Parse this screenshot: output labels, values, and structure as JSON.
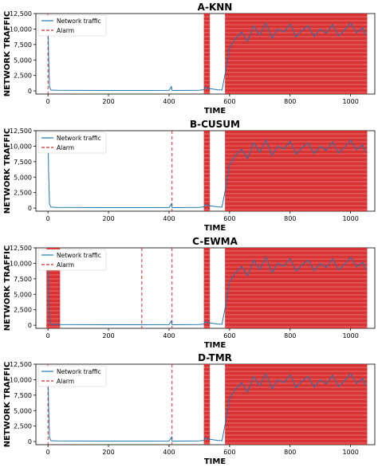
{
  "figure": {
    "xlabel": "TIME",
    "ylabel": "NETWORK TRAFFIC"
  },
  "chart_data": [
    {
      "type": "line",
      "title": "A-KNN",
      "xlabel": "TIME",
      "ylabel": "NETWORK TRAFFIC",
      "xlim": [
        -40,
        1080
      ],
      "ylim": [
        -500,
        12500
      ],
      "xticks": [
        0,
        200,
        400,
        600,
        800,
        1000
      ],
      "yticks": [
        0,
        2500,
        5000,
        7500,
        10000,
        12500
      ],
      "ytick_labels": [
        "0",
        "2,500",
        "5,000",
        "7,500",
        "10,000",
        "12,500"
      ],
      "legend": {
        "position": "top-left",
        "entries": [
          "Network traffic",
          "Alarm"
        ]
      },
      "series": [
        {
          "name": "Network traffic",
          "color": "#1f77b4",
          "x": [
            0,
            2,
            5,
            10,
            30,
            100,
            200,
            300,
            400,
            408,
            410,
            412,
            420,
            500,
            515,
            520,
            530,
            545,
            560,
            575,
            590,
            600,
            620,
            640,
            660,
            680,
            700,
            720,
            740,
            760,
            780,
            800,
            820,
            840,
            860,
            880,
            900,
            920,
            940,
            960,
            980,
            1000,
            1020,
            1040,
            1050
          ],
          "y": [
            12200,
            6000,
            600,
            150,
            100,
            90,
            80,
            80,
            90,
            700,
            90,
            80,
            80,
            120,
            200,
            600,
            400,
            300,
            200,
            150,
            4000,
            7000,
            8500,
            9500,
            8000,
            10500,
            9000,
            11000,
            8500,
            10000,
            9500,
            10800,
            8700,
            9800,
            10500,
            8800,
            10000,
            9300,
            10700,
            8900,
            9800,
            11000,
            9400,
            10200,
            9000
          ]
        },
        {
          "name": "Alarm",
          "color": "#d62728",
          "type": "vline",
          "single": [
            0
          ],
          "bands": [
            [
              515,
              535
            ],
            [
              585,
              1055
            ]
          ]
        }
      ]
    },
    {
      "type": "line",
      "title": "B-CUSUM",
      "xlabel": "TIME",
      "ylabel": "NETWORK TRAFFIC",
      "xlim": [
        -40,
        1080
      ],
      "ylim": [
        -500,
        12500
      ],
      "xticks": [
        0,
        200,
        400,
        600,
        800,
        1000
      ],
      "yticks": [
        0,
        2500,
        5000,
        7500,
        10000,
        12500
      ],
      "ytick_labels": [
        "0",
        "2,500",
        "5,000",
        "7,500",
        "10,000",
        "12,500"
      ],
      "legend": {
        "position": "top-left",
        "entries": [
          "Network traffic",
          "Alarm"
        ]
      },
      "series": [
        {
          "name": "Network traffic",
          "color": "#1f77b4",
          "x": [
            0,
            2,
            5,
            10,
            30,
            100,
            200,
            300,
            400,
            408,
            410,
            412,
            420,
            500,
            515,
            520,
            530,
            545,
            560,
            575,
            590,
            600,
            620,
            640,
            660,
            680,
            700,
            720,
            740,
            760,
            780,
            800,
            820,
            840,
            860,
            880,
            900,
            920,
            940,
            960,
            980,
            1000,
            1020,
            1040,
            1050
          ],
          "y": [
            12200,
            6000,
            600,
            150,
            100,
            90,
            80,
            80,
            90,
            700,
            90,
            80,
            80,
            120,
            200,
            600,
            400,
            300,
            200,
            150,
            4000,
            7000,
            8500,
            9500,
            8000,
            10500,
            9000,
            11000,
            8500,
            10000,
            9500,
            10800,
            8700,
            9800,
            10500,
            8800,
            10000,
            9300,
            10700,
            8900,
            9800,
            11000,
            9400,
            10200,
            9000
          ]
        },
        {
          "name": "Alarm",
          "color": "#d62728",
          "type": "vline",
          "single": [
            410
          ],
          "bands": [
            [
              515,
              535
            ],
            [
              585,
              1055
            ]
          ]
        }
      ]
    },
    {
      "type": "line",
      "title": "C-EWMA",
      "xlabel": "TIME",
      "ylabel": "NETWORK TRAFFIC",
      "xlim": [
        -40,
        1080
      ],
      "ylim": [
        -500,
        12500
      ],
      "xticks": [
        0,
        200,
        400,
        600,
        800,
        1000
      ],
      "yticks": [
        0,
        2500,
        5000,
        7500,
        10000,
        12500
      ],
      "ytick_labels": [
        "0",
        "2,500",
        "5,000",
        "7,500",
        "10,000",
        "12,500"
      ],
      "legend": {
        "position": "top-left",
        "entries": [
          "Network traffic",
          "Alarm"
        ]
      },
      "series": [
        {
          "name": "Network traffic",
          "color": "#1f77b4",
          "x": [
            0,
            2,
            5,
            10,
            30,
            100,
            200,
            300,
            400,
            408,
            410,
            412,
            420,
            500,
            515,
            520,
            530,
            545,
            560,
            575,
            590,
            600,
            620,
            640,
            660,
            680,
            700,
            720,
            740,
            760,
            780,
            800,
            820,
            840,
            860,
            880,
            900,
            920,
            940,
            960,
            980,
            1000,
            1020,
            1040,
            1050
          ],
          "y": [
            12200,
            6000,
            600,
            150,
            100,
            90,
            80,
            80,
            90,
            700,
            90,
            80,
            80,
            120,
            200,
            600,
            400,
            300,
            200,
            150,
            4000,
            7000,
            8500,
            9500,
            8000,
            10500,
            9000,
            11000,
            8500,
            10000,
            9500,
            10800,
            8700,
            9800,
            10500,
            8800,
            10000,
            9300,
            10700,
            8900,
            9800,
            11000,
            9400,
            10200,
            9000
          ]
        },
        {
          "name": "Alarm",
          "color": "#d62728",
          "type": "vline",
          "single": [
            310,
            410
          ],
          "bands": [
            [
              -5,
              40
            ],
            [
              515,
              535
            ],
            [
              585,
              1055
            ]
          ]
        }
      ]
    },
    {
      "type": "line",
      "title": "D-TMR",
      "xlabel": "TIME",
      "ylabel": "NETWORK TRAFFIC",
      "xlim": [
        -40,
        1080
      ],
      "ylim": [
        -500,
        12500
      ],
      "xticks": [
        0,
        200,
        400,
        600,
        800,
        1000
      ],
      "yticks": [
        0,
        2500,
        5000,
        7500,
        10000,
        12500
      ],
      "ytick_labels": [
        "0",
        "2,500",
        "5,000",
        "7,500",
        "10,000",
        "12,500"
      ],
      "legend": {
        "position": "top-left",
        "entries": [
          "Network traffic",
          "Alarm"
        ]
      },
      "series": [
        {
          "name": "Network traffic",
          "color": "#1f77b4",
          "x": [
            0,
            2,
            5,
            10,
            30,
            100,
            200,
            300,
            400,
            408,
            410,
            412,
            420,
            500,
            515,
            520,
            530,
            545,
            560,
            575,
            590,
            600,
            620,
            640,
            660,
            680,
            700,
            720,
            740,
            760,
            780,
            800,
            820,
            840,
            860,
            880,
            900,
            920,
            940,
            960,
            980,
            1000,
            1020,
            1040,
            1050
          ],
          "y": [
            12200,
            6000,
            600,
            150,
            100,
            90,
            80,
            80,
            90,
            700,
            90,
            80,
            80,
            120,
            200,
            600,
            400,
            300,
            200,
            150,
            4000,
            7000,
            8500,
            9500,
            8000,
            10500,
            9000,
            11000,
            8500,
            10000,
            9500,
            10800,
            8700,
            9800,
            10500,
            8800,
            10000,
            9300,
            10700,
            8900,
            9800,
            11000,
            9400,
            10200,
            9000
          ]
        },
        {
          "name": "Alarm",
          "color": "#d62728",
          "type": "vline",
          "single": [
            0,
            410
          ],
          "bands": [
            [
              515,
              535
            ],
            [
              585,
              1055
            ]
          ]
        }
      ]
    }
  ]
}
